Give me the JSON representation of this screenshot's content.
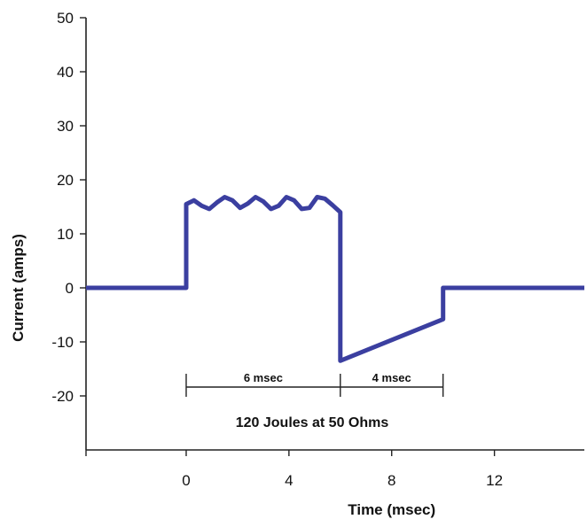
{
  "chart_data": {
    "type": "line",
    "title": "",
    "xlabel": "Time (msec)",
    "ylabel": "Current (amps)",
    "xlim": [
      -3.9,
      15.5
    ],
    "ylim": [
      -30,
      50
    ],
    "x_ticks": [
      0,
      4,
      8,
      12
    ],
    "y_ticks": [
      50,
      40,
      30,
      20,
      10,
      0,
      -10,
      -20
    ],
    "grid": false,
    "line_color": "#3b3fa0",
    "series": [
      {
        "name": "",
        "x": [
          -3.9,
          0,
          0,
          0.3,
          0.6,
          0.9,
          1.2,
          1.5,
          1.8,
          2.1,
          2.4,
          2.7,
          3.0,
          3.3,
          3.6,
          3.9,
          4.2,
          4.5,
          4.8,
          5.1,
          5.4,
          5.7,
          6.0,
          6.0,
          10.0,
          10.0,
          15.5
        ],
        "y": [
          0,
          0,
          15.5,
          16.2,
          15.2,
          14.6,
          15.8,
          16.8,
          16.2,
          14.8,
          15.6,
          16.8,
          16.0,
          14.6,
          15.2,
          16.8,
          16.2,
          14.6,
          14.8,
          16.8,
          16.5,
          15.3,
          14.0,
          -13.5,
          -5.8,
          0,
          0
        ]
      }
    ],
    "annotations": {
      "bracket_1": {
        "label": "6 msec",
        "x_start": 0,
        "x_end": 6
      },
      "bracket_2": {
        "label": "4 msec",
        "x_start": 6,
        "x_end": 10
      },
      "caption": "120 Joules at 50 Ohms"
    }
  }
}
